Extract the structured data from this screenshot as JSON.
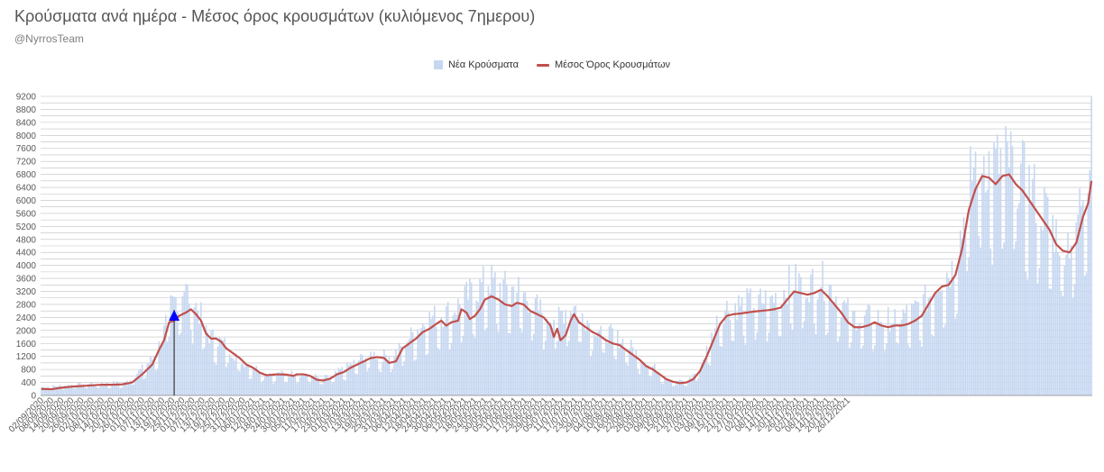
{
  "header": {
    "title": "Κρούσματα ανά ημέρα - Μέσος όρος κρουσμάτων (κυλιόμενος 7ημερου)",
    "subtitle": "@NyrrosTeam"
  },
  "colors": {
    "bars": "#c6d7f1",
    "line": "#c0504d",
    "grid": "#bfbfbf",
    "marker": "#0000ff"
  },
  "chart_data": {
    "type": "bar",
    "title": "Κρούσματα ανά ημέρα - Μέσος όρος κρουσμάτων (κυλιόμενος 7ημερου)",
    "xlabel": "",
    "ylabel": "",
    "ylim": [
      0,
      9200
    ],
    "ytick_step": 200,
    "ytick_label_step": 400,
    "grid": true,
    "legend_position": "top-center",
    "start_date": "2020-09-02",
    "x_tick_labels": [
      "02/09/2020",
      "08/09/2020",
      "14/09/2020",
      "20/09/2020",
      "26/09/2020",
      "02/10/2020",
      "08/10/2020",
      "14/10/2020",
      "20/10/2020",
      "26/10/2020",
      "01/11/2020",
      "07/11/2020",
      "13/11/2020",
      "19/11/2020",
      "25/11/2020",
      "01/12/2020",
      "07/12/2020",
      "13/12/2020",
      "19/12/2020",
      "25/12/2020",
      "31/12/2020",
      "06/01/2021",
      "12/01/2021",
      "18/01/2021",
      "24/01/2021",
      "30/01/2021",
      "05/02/2021",
      "11/02/2021",
      "17/02/2021",
      "23/02/2021",
      "01/03/2021",
      "07/03/2021",
      "13/03/2021",
      "19/03/2021",
      "25/03/2021",
      "31/03/2021",
      "06/04/2021",
      "12/04/2021",
      "18/04/2021",
      "24/04/2021",
      "30/04/2021",
      "06/05/2021",
      "12/05/2021",
      "18/05/2021",
      "24/05/2021",
      "30/05/2021",
      "05/06/2021",
      "11/06/2021",
      "17/06/2021",
      "23/06/2021",
      "29/06/2021",
      "05/07/2021",
      "11/07/2021",
      "17/07/2021",
      "23/07/2021",
      "29/07/2021",
      "04/08/2021",
      "10/08/2021",
      "16/08/2021",
      "22/08/2021",
      "28/08/2021",
      "03/09/2021",
      "09/09/2021",
      "15/09/2021",
      "21/09/2021",
      "27/09/2021",
      "03/10/2021",
      "09/10/2021",
      "15/10/2021",
      "21/10/2021",
      "27/10/2021",
      "02/11/2021",
      "08/11/2021",
      "14/11/2021",
      "20/11/2021",
      "26/11/2021",
      "02/12/2021",
      "08/12/2021",
      "14/12/2021",
      "20/12/2021",
      "26/12/2021"
    ],
    "avg_keypoints": [
      [
        0,
        200
      ],
      [
        6,
        190
      ],
      [
        12,
        240
      ],
      [
        18,
        270
      ],
      [
        24,
        290
      ],
      [
        30,
        310
      ],
      [
        36,
        330
      ],
      [
        42,
        330
      ],
      [
        48,
        340
      ],
      [
        54,
        400
      ],
      [
        60,
        650
      ],
      [
        66,
        950
      ],
      [
        70,
        1400
      ],
      [
        73,
        1700
      ],
      [
        76,
        2250
      ],
      [
        79,
        2300
      ],
      [
        82,
        2450
      ],
      [
        86,
        2550
      ],
      [
        89,
        2650
      ],
      [
        92,
        2500
      ],
      [
        95,
        2300
      ],
      [
        98,
        1900
      ],
      [
        101,
        1750
      ],
      [
        104,
        1750
      ],
      [
        107,
        1650
      ],
      [
        110,
        1450
      ],
      [
        114,
        1300
      ],
      [
        118,
        1150
      ],
      [
        122,
        950
      ],
      [
        126,
        850
      ],
      [
        130,
        700
      ],
      [
        134,
        620
      ],
      [
        140,
        650
      ],
      [
        146,
        640
      ],
      [
        150,
        600
      ],
      [
        152,
        650
      ],
      [
        156,
        650
      ],
      [
        160,
        600
      ],
      [
        164,
        480
      ],
      [
        168,
        460
      ],
      [
        172,
        520
      ],
      [
        176,
        650
      ],
      [
        180,
        720
      ],
      [
        184,
        850
      ],
      [
        188,
        950
      ],
      [
        192,
        1050
      ],
      [
        196,
        1150
      ],
      [
        200,
        1180
      ],
      [
        204,
        1150
      ],
      [
        207,
        1000
      ],
      [
        211,
        1050
      ],
      [
        215,
        1450
      ],
      [
        219,
        1600
      ],
      [
        223,
        1750
      ],
      [
        227,
        1950
      ],
      [
        231,
        2050
      ],
      [
        235,
        2200
      ],
      [
        238,
        2300
      ],
      [
        241,
        2150
      ],
      [
        244,
        2250
      ],
      [
        248,
        2300
      ],
      [
        250,
        2650
      ],
      [
        253,
        2550
      ],
      [
        255,
        2350
      ],
      [
        258,
        2450
      ],
      [
        261,
        2650
      ],
      [
        264,
        2950
      ],
      [
        268,
        3050
      ],
      [
        272,
        2950
      ],
      [
        276,
        2800
      ],
      [
        280,
        2750
      ],
      [
        283,
        2850
      ],
      [
        287,
        2800
      ],
      [
        291,
        2600
      ],
      [
        295,
        2500
      ],
      [
        299,
        2400
      ],
      [
        303,
        2150
      ],
      [
        305,
        1800
      ],
      [
        307,
        2050
      ],
      [
        309,
        1700
      ],
      [
        312,
        1850
      ],
      [
        315,
        2300
      ],
      [
        317,
        2500
      ],
      [
        320,
        2250
      ],
      [
        324,
        2100
      ],
      [
        328,
        1950
      ],
      [
        332,
        1850
      ],
      [
        336,
        1700
      ],
      [
        340,
        1600
      ],
      [
        344,
        1550
      ],
      [
        348,
        1400
      ],
      [
        352,
        1250
      ],
      [
        356,
        1100
      ],
      [
        360,
        900
      ],
      [
        364,
        800
      ],
      [
        368,
        650
      ],
      [
        372,
        500
      ],
      [
        376,
        420
      ],
      [
        380,
        380
      ],
      [
        384,
        400
      ],
      [
        388,
        500
      ],
      [
        392,
        750
      ],
      [
        396,
        1200
      ],
      [
        400,
        1700
      ],
      [
        404,
        2200
      ],
      [
        408,
        2450
      ],
      [
        412,
        2500
      ],
      [
        416,
        2520
      ],
      [
        420,
        2550
      ],
      [
        424,
        2580
      ],
      [
        428,
        2600
      ],
      [
        432,
        2620
      ],
      [
        436,
        2650
      ],
      [
        440,
        2700
      ],
      [
        444,
        2950
      ],
      [
        448,
        3200
      ],
      [
        452,
        3150
      ],
      [
        456,
        3100
      ],
      [
        460,
        3150
      ],
      [
        464,
        3250
      ],
      [
        468,
        3050
      ],
      [
        472,
        2800
      ],
      [
        476,
        2550
      ],
      [
        480,
        2250
      ],
      [
        484,
        2100
      ],
      [
        488,
        2100
      ],
      [
        492,
        2150
      ],
      [
        496,
        2250
      ],
      [
        500,
        2150
      ],
      [
        504,
        2100
      ],
      [
        508,
        2150
      ],
      [
        512,
        2150
      ],
      [
        516,
        2200
      ],
      [
        520,
        2300
      ],
      [
        524,
        2450
      ],
      [
        528,
        2800
      ],
      [
        532,
        3150
      ],
      [
        536,
        3350
      ],
      [
        540,
        3400
      ],
      [
        544,
        3700
      ],
      [
        548,
        4500
      ],
      [
        552,
        5700
      ],
      [
        556,
        6350
      ],
      [
        560,
        6750
      ],
      [
        564,
        6700
      ],
      [
        568,
        6500
      ],
      [
        572,
        6750
      ],
      [
        576,
        6800
      ],
      [
        580,
        6500
      ],
      [
        584,
        6300
      ],
      [
        588,
        6000
      ],
      [
        592,
        5700
      ],
      [
        596,
        5400
      ],
      [
        600,
        5100
      ],
      [
        604,
        4650
      ],
      [
        608,
        4450
      ],
      [
        612,
        4400
      ],
      [
        616,
        4700
      ],
      [
        620,
        5500
      ],
      [
        623,
        5900
      ],
      [
        625,
        6600
      ]
    ],
    "bar_keypoints": [
      [
        0,
        250
      ],
      [
        30,
        360
      ],
      [
        50,
        380
      ],
      [
        60,
        800
      ],
      [
        66,
        1100
      ],
      [
        72,
        1700
      ],
      [
        76,
        2600
      ],
      [
        80,
        2900
      ],
      [
        84,
        3300
      ],
      [
        88,
        3000
      ],
      [
        92,
        2700
      ],
      [
        96,
        2300
      ],
      [
        100,
        1800
      ],
      [
        104,
        1700
      ],
      [
        110,
        1500
      ],
      [
        118,
        1100
      ],
      [
        126,
        850
      ],
      [
        134,
        680
      ],
      [
        142,
        650
      ],
      [
        150,
        660
      ],
      [
        158,
        640
      ],
      [
        166,
        520
      ],
      [
        172,
        550
      ],
      [
        180,
        800
      ],
      [
        188,
        1050
      ],
      [
        196,
        1250
      ],
      [
        204,
        1200
      ],
      [
        212,
        1300
      ],
      [
        218,
        1700
      ],
      [
        224,
        2000
      ],
      [
        230,
        2300
      ],
      [
        236,
        2400
      ],
      [
        242,
        2500
      ],
      [
        248,
        2700
      ],
      [
        254,
        3000
      ],
      [
        260,
        3200
      ],
      [
        266,
        3500
      ],
      [
        272,
        3300
      ],
      [
        278,
        3200
      ],
      [
        284,
        3200
      ],
      [
        290,
        2900
      ],
      [
        296,
        2600
      ],
      [
        302,
        2400
      ],
      [
        308,
        2400
      ],
      [
        314,
        2700
      ],
      [
        320,
        2600
      ],
      [
        326,
        2200
      ],
      [
        332,
        2000
      ],
      [
        338,
        1850
      ],
      [
        344,
        1700
      ],
      [
        350,
        1500
      ],
      [
        356,
        1200
      ],
      [
        362,
        950
      ],
      [
        368,
        700
      ],
      [
        374,
        500
      ],
      [
        380,
        420
      ],
      [
        386,
        500
      ],
      [
        392,
        850
      ],
      [
        398,
        1600
      ],
      [
        404,
        2500
      ],
      [
        410,
        2700
      ],
      [
        416,
        2750
      ],
      [
        422,
        2800
      ],
      [
        428,
        2850
      ],
      [
        434,
        2900
      ],
      [
        440,
        3000
      ],
      [
        446,
        3450
      ],
      [
        452,
        3400
      ],
      [
        458,
        3350
      ],
      [
        464,
        3500
      ],
      [
        470,
        3200
      ],
      [
        476,
        2800
      ],
      [
        482,
        2400
      ],
      [
        488,
        2300
      ],
      [
        494,
        2400
      ],
      [
        500,
        2300
      ],
      [
        506,
        2300
      ],
      [
        512,
        2400
      ],
      [
        518,
        2500
      ],
      [
        524,
        2700
      ],
      [
        530,
        3100
      ],
      [
        536,
        3600
      ],
      [
        542,
        3800
      ],
      [
        548,
        5000
      ],
      [
        552,
        6300
      ],
      [
        556,
        7000
      ],
      [
        560,
        7300
      ],
      [
        564,
        7000
      ],
      [
        568,
        6900
      ],
      [
        572,
        7100
      ],
      [
        576,
        7100
      ],
      [
        580,
        6800
      ],
      [
        584,
        6600
      ],
      [
        588,
        6300
      ],
      [
        592,
        6000
      ],
      [
        596,
        5700
      ],
      [
        600,
        5300
      ],
      [
        604,
        4900
      ],
      [
        608,
        4700
      ],
      [
        612,
        4700
      ],
      [
        616,
        5100
      ],
      [
        620,
        6300
      ],
      [
        624,
        7000
      ],
      [
        625,
        9200
      ]
    ],
    "annotation": {
      "x_index": 79,
      "value": 2300,
      "marker": "up-triangle"
    }
  }
}
